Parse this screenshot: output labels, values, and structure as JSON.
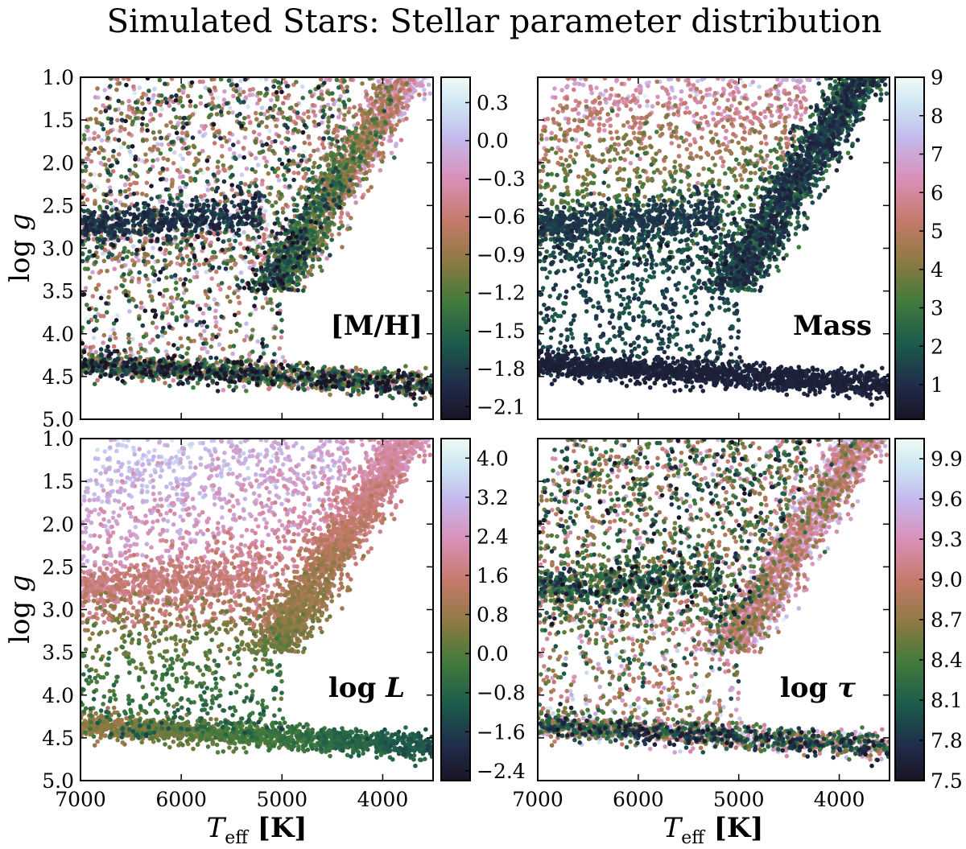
{
  "chart_data": {
    "type": "scatter",
    "title": "Simulated Stars: Stellar parameter distribution",
    "xlabel": "T_eff [K]",
    "xlabel_main": "T",
    "xlabel_sub": "eff",
    "xlabel_unit": " [K]",
    "ylabel": "log g",
    "ylabel_prefix": "log ",
    "ylabel_var": "g",
    "xlim": [
      7000,
      3500
    ],
    "ylim": [
      5.0,
      1.0
    ],
    "xticks": [
      7000,
      6000,
      5000,
      4000
    ],
    "xtick_labels": [
      "7000",
      "6000",
      "5000",
      "4000"
    ],
    "yticks": [
      1.0,
      1.5,
      2.0,
      2.5,
      3.0,
      3.5,
      4.0,
      4.5,
      5.0
    ],
    "ytick_labels": [
      "1.0",
      "1.5",
      "2.0",
      "2.5",
      "3.0",
      "3.5",
      "4.0",
      "4.5",
      "5.0"
    ],
    "colormap": "cubehelix",
    "panels": [
      {
        "id": "metallicity",
        "annotation": "[M/H]",
        "annotation_main": "[M/H]",
        "annotation_var": "",
        "color_variable": "[M/H]",
        "colorbar_range": [
          -2.2,
          0.5
        ],
        "colorbar_ticks": [
          0.3,
          0.0,
          -0.3,
          -0.6,
          -0.9,
          -1.2,
          -1.5,
          -1.8,
          -2.1
        ],
        "colorbar_tick_labels": [
          "0.3",
          "0.0",
          "−0.3",
          "−0.6",
          "−0.9",
          "−1.2",
          "−1.5",
          "−1.8",
          "−2.1"
        ]
      },
      {
        "id": "mass",
        "annotation": "Mass",
        "annotation_main": "Mass",
        "annotation_var": "",
        "color_variable": "Mass",
        "colorbar_range": [
          0.1,
          9.0
        ],
        "colorbar_ticks": [
          9,
          8,
          7,
          6,
          5,
          4,
          3,
          2,
          1
        ],
        "colorbar_tick_labels": [
          "9",
          "8",
          "7",
          "6",
          "5",
          "4",
          "3",
          "2",
          "1"
        ]
      },
      {
        "id": "luminosity",
        "annotation": "log L",
        "annotation_main": "log ",
        "annotation_var": "L",
        "color_variable": "log L",
        "colorbar_range": [
          -2.6,
          4.4
        ],
        "colorbar_ticks": [
          4.0,
          3.2,
          2.4,
          1.6,
          0.8,
          0.0,
          -0.8,
          -1.6,
          -2.4
        ],
        "colorbar_tick_labels": [
          "4.0",
          "3.2",
          "2.4",
          "1.6",
          "0.8",
          "0.0",
          "−0.8",
          "−1.6",
          "−2.4"
        ]
      },
      {
        "id": "age",
        "annotation": "log τ",
        "annotation_main": "log ",
        "annotation_var": "τ",
        "color_variable": "log τ",
        "colorbar_range": [
          7.5,
          10.05
        ],
        "colorbar_ticks": [
          9.9,
          9.6,
          9.3,
          9.0,
          8.7,
          8.4,
          8.1,
          7.8,
          7.5
        ],
        "colorbar_tick_labels": [
          "9.9",
          "9.6",
          "9.3",
          "9.0",
          "8.7",
          "8.4",
          "8.1",
          "7.8",
          "7.5"
        ]
      }
    ]
  }
}
